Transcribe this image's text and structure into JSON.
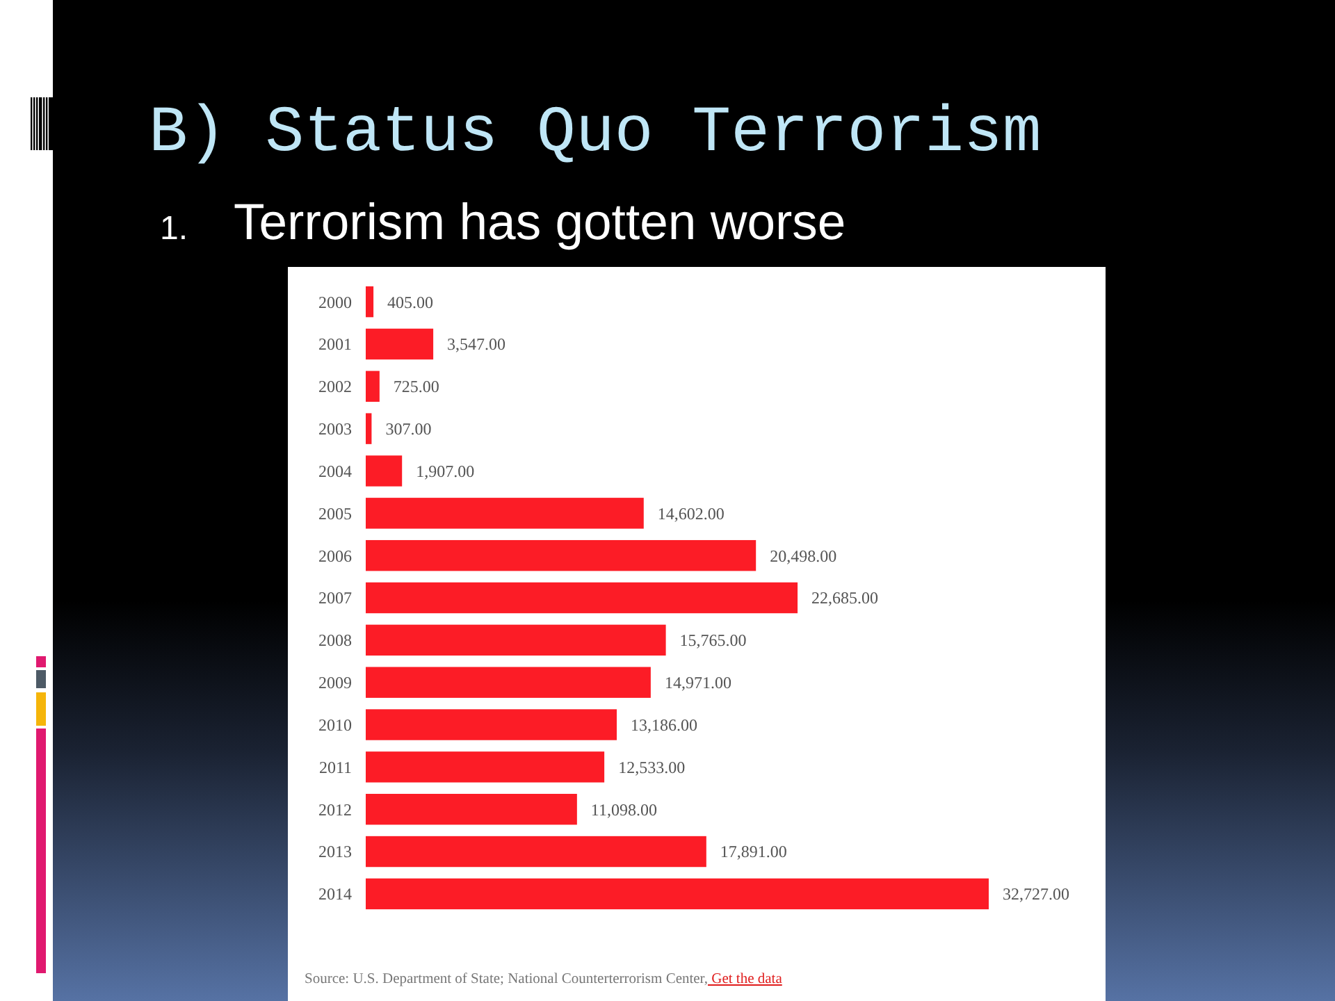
{
  "chart_data": {
    "type": "bar",
    "orientation": "horizontal",
    "title": "B) Status Quo Terrorism",
    "subtitle": "1. Terrorism has gotten worse",
    "categories": [
      "2000",
      "2001",
      "2002",
      "2003",
      "2004",
      "2005",
      "2006",
      "2007",
      "2008",
      "2009",
      "2010",
      "2011",
      "2012",
      "2013",
      "2014"
    ],
    "values": [
      405,
      3547,
      725,
      307,
      1907,
      14602,
      20498,
      22685,
      15765,
      14971,
      13186,
      12533,
      11098,
      17891,
      32727
    ],
    "value_labels": [
      "405.00",
      "3,547.00",
      "725.00",
      "307.00",
      "1,907.00",
      "14,602.00",
      "20,498.00",
      "22,685.00",
      "15,765.00",
      "14,971.00",
      "13,186.00",
      "12,533.00",
      "11,098.00",
      "17,891.00",
      "32,727.00"
    ],
    "color": "#fc1c26",
    "annotations": [
      "Source: U.S. Department of State; National Counterterrorism Center,",
      "Get the data"
    ]
  }
}
